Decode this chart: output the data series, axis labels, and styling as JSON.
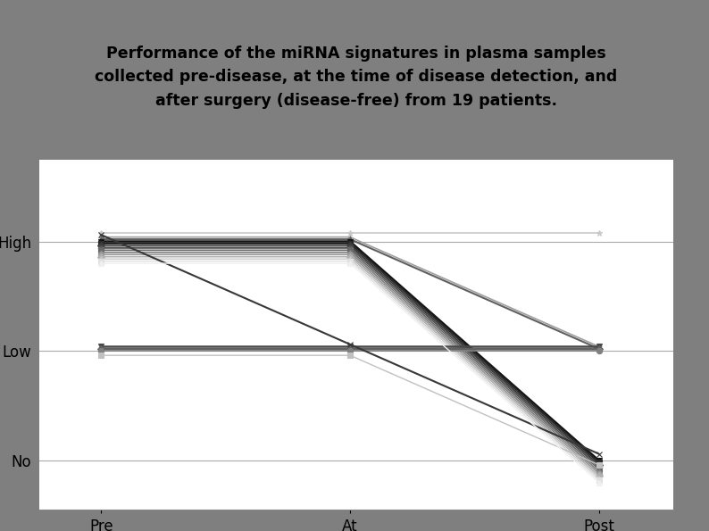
{
  "title_line1": "Performance of the miRNA signatures in plasma samples",
  "title_line2": "collected pre-disease, at the time of disease detection, and",
  "title_line3": "after surgery (disease-free) from 19 patients.",
  "title_bg": "#4da6e8",
  "chart_bg": "#ffffff",
  "outer_bg": "#7f7f7f",
  "x_labels": [
    "Pre",
    "At",
    "Post"
  ],
  "y_labels": [
    "No",
    "Low",
    "High"
  ],
  "y_values": {
    "High": 2,
    "Low": 1,
    "No": 0
  },
  "lines": [
    {
      "pre": 2,
      "at": 2,
      "post": 2,
      "color": "#c8c8c8",
      "marker": "*",
      "lw": 1.2,
      "jitter": 0.08
    },
    {
      "pre": 2,
      "at": 2,
      "post": 1,
      "color": "#a0a0a0",
      "marker": "+",
      "lw": 1.2,
      "jitter": 0.04
    },
    {
      "pre": 2,
      "at": 2,
      "post": 1,
      "color": "#606060",
      "marker": "^",
      "lw": 1.5,
      "jitter": 0.02
    },
    {
      "pre": 2,
      "at": 2,
      "post": 0,
      "color": "#151515",
      "marker": "v",
      "lw": 1.8,
      "jitter": 0.0
    },
    {
      "pre": 2,
      "at": 2,
      "post": 0,
      "color": "#282828",
      "marker": "s",
      "lw": 1.5,
      "jitter": -0.02
    },
    {
      "pre": 2,
      "at": 2,
      "post": 0,
      "color": "#3c3c3c",
      "marker": "D",
      "lw": 1.4,
      "jitter": -0.04
    },
    {
      "pre": 2,
      "at": 2,
      "post": 0,
      "color": "#505050",
      "marker": "o",
      "lw": 1.3,
      "jitter": -0.06
    },
    {
      "pre": 2,
      "at": 2,
      "post": 0,
      "color": "#686868",
      "marker": "s",
      "lw": 1.2,
      "jitter": -0.08
    },
    {
      "pre": 2,
      "at": 2,
      "post": 0,
      "color": "#808080",
      "marker": "^",
      "lw": 1.2,
      "jitter": -0.1
    },
    {
      "pre": 2,
      "at": 2,
      "post": 0,
      "color": "#989898",
      "marker": "o",
      "lw": 1.2,
      "jitter": -0.12
    },
    {
      "pre": 2,
      "at": 2,
      "post": 0,
      "color": "#b0b0b0",
      "marker": "D",
      "lw": 1.1,
      "jitter": -0.14
    },
    {
      "pre": 2,
      "at": 2,
      "post": 0,
      "color": "#c8c8c8",
      "marker": "^",
      "lw": 1.0,
      "jitter": -0.16
    },
    {
      "pre": 2,
      "at": 2,
      "post": 0,
      "color": "#e0e0e0",
      "marker": "s",
      "lw": 1.0,
      "jitter": -0.18
    },
    {
      "pre": 1,
      "at": 1,
      "post": 1,
      "color": "#484848",
      "marker": "v",
      "lw": 1.8,
      "jitter": 0.04
    },
    {
      "pre": 1,
      "at": 1,
      "post": 1,
      "color": "#606060",
      "marker": "D",
      "lw": 1.5,
      "jitter": 0.02
    },
    {
      "pre": 1,
      "at": 1,
      "post": 1,
      "color": "#808080",
      "marker": "o",
      "lw": 1.3,
      "jitter": 0.0
    },
    {
      "pre": 2,
      "at": 1,
      "post": 0,
      "color": "#383838",
      "marker": "x",
      "lw": 1.5,
      "jitter": 0.06
    },
    {
      "pre": 1,
      "at": 1,
      "post": 0,
      "color": "#c0c0c0",
      "marker": "s",
      "lw": 1.0,
      "jitter": -0.04
    },
    {
      "pre": 2,
      "at": 2,
      "post": 0,
      "color": "#f0f0f0",
      "marker": "^",
      "lw": 1.0,
      "jitter": -0.2
    }
  ],
  "ylim": [
    -0.45,
    2.75
  ],
  "xlim": [
    -0.25,
    2.3
  ],
  "figsize": [
    7.94,
    5.95
  ],
  "dpi": 100
}
